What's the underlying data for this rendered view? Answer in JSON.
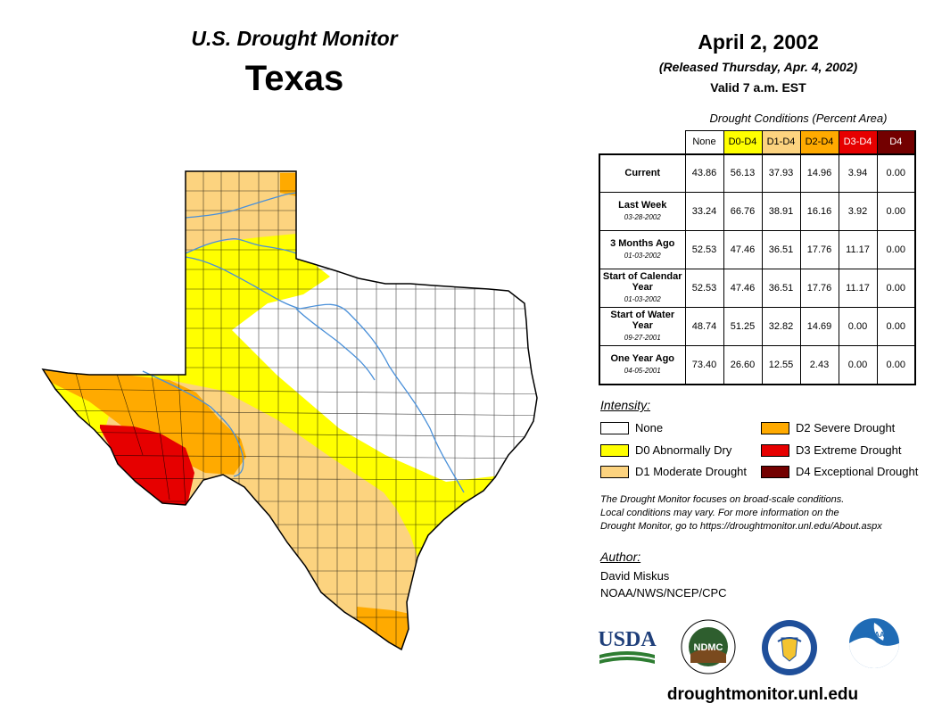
{
  "header": {
    "title": "U.S. Drought Monitor",
    "state": "Texas",
    "date": "April 2, 2002",
    "released": "(Released Thursday, Apr. 4, 2002)",
    "valid": "Valid 7 a.m. EST"
  },
  "colors": {
    "none": "#ffffff",
    "d0": "#ffff00",
    "d1": "#fcd37f",
    "d2": "#ffaa00",
    "d3": "#e60000",
    "d4": "#730000",
    "river": "#4a90d9",
    "border": "#000000"
  },
  "table": {
    "caption": "Drought Conditions (Percent Area)",
    "columns": [
      "None",
      "D0-D4",
      "D1-D4",
      "D2-D4",
      "D3-D4",
      "D4"
    ],
    "rows": [
      {
        "label": "Current",
        "date": "",
        "values": [
          "43.86",
          "56.13",
          "37.93",
          "14.96",
          "3.94",
          "0.00"
        ]
      },
      {
        "label": "Last Week",
        "date": "03-28-2002",
        "values": [
          "33.24",
          "66.76",
          "38.91",
          "16.16",
          "3.92",
          "0.00"
        ]
      },
      {
        "label": "3 Months Ago",
        "date": "01-03-2002",
        "values": [
          "52.53",
          "47.46",
          "36.51",
          "17.76",
          "11.17",
          "0.00"
        ]
      },
      {
        "label": "Start of Calendar Year",
        "date": "01-03-2002",
        "values": [
          "52.53",
          "47.46",
          "36.51",
          "17.76",
          "11.17",
          "0.00"
        ]
      },
      {
        "label": "Start of Water Year",
        "date": "09-27-2001",
        "values": [
          "48.74",
          "51.25",
          "32.82",
          "14.69",
          "0.00",
          "0.00"
        ]
      },
      {
        "label": "One Year Ago",
        "date": "04-05-2001",
        "values": [
          "73.40",
          "26.60",
          "12.55",
          "2.43",
          "0.00",
          "0.00"
        ]
      }
    ]
  },
  "legend": {
    "title": "Intensity:",
    "items": [
      {
        "label": "None"
      },
      {
        "label": "D0 Abnormally Dry"
      },
      {
        "label": "D1 Moderate Drought"
      },
      {
        "label": "D2 Severe Drought"
      },
      {
        "label": "D3 Extreme Drought"
      },
      {
        "label": "D4 Exceptional Drought"
      }
    ]
  },
  "note": [
    "The Drought Monitor focuses on broad-scale conditions.",
    "Local conditions may vary. For more information on the",
    "Drought Monitor, go to https://droughtmonitor.unl.edu/About.aspx"
  ],
  "author": {
    "title": "Author:",
    "name": "David Miskus",
    "org": "NOAA/NWS/NCEP/CPC"
  },
  "logos": {
    "usda": "USDA",
    "ndmc": "NDMC",
    "noaa": "NOAA"
  },
  "url": "droughtmonitor.unl.edu"
}
